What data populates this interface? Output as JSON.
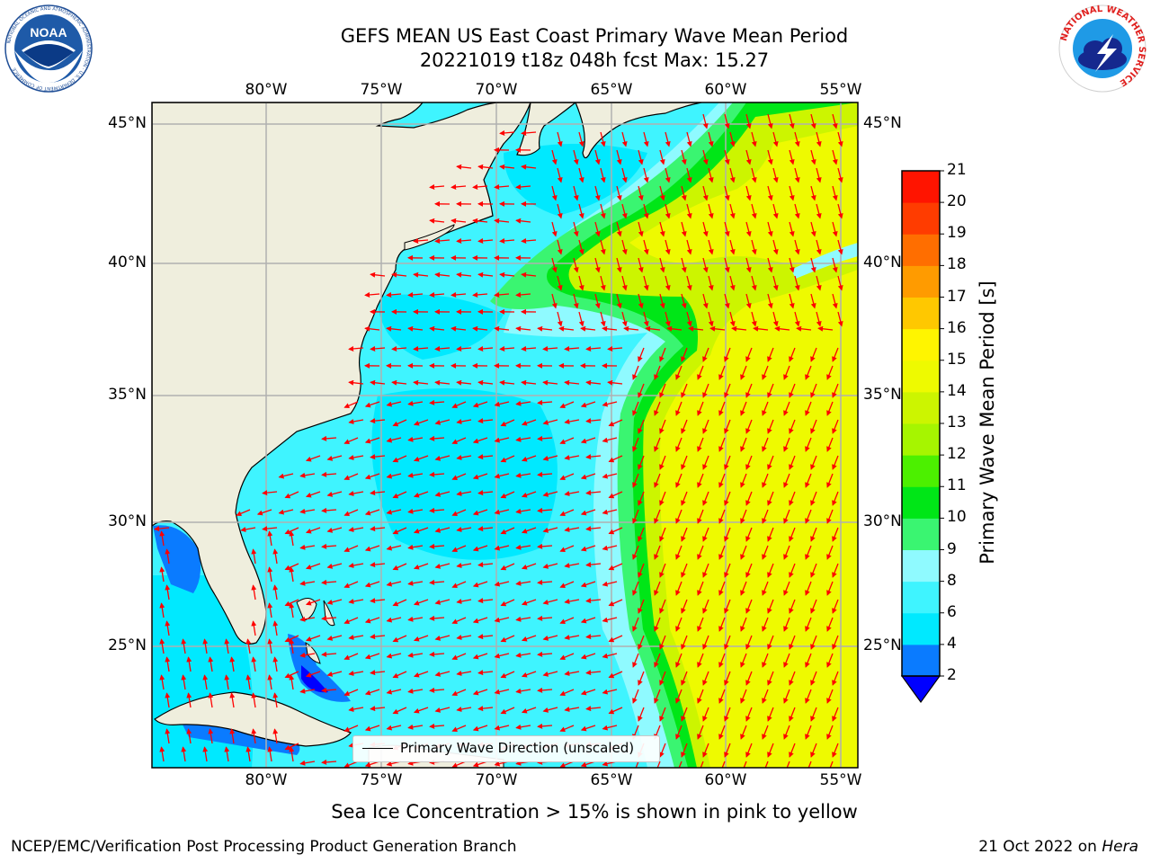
{
  "header": {
    "title_line1": "GEFS MEAN US East Coast Primary Wave Mean Period",
    "title_line2": "20221019 t18z 048h fcst   Max: 15.27"
  },
  "logos": {
    "noaa_text": "NOAA",
    "noaa_ring": "NATIONAL OCEANIC AND ATMOSPHERIC ADMINISTRATION · U.S. DEPARTMENT OF COMMERCE",
    "nws_ring": "NATIONAL WEATHER SERVICE"
  },
  "map": {
    "lon_labels": [
      "80°W",
      "75°W",
      "70°W",
      "65°W",
      "60°W",
      "55°W"
    ],
    "lat_labels": [
      "45°N",
      "40°N",
      "35°N",
      "30°N",
      "25°N"
    ],
    "lon_range": [
      -85,
      -54.3
    ],
    "lat_range": [
      20.5,
      45.8
    ],
    "gridlines": true,
    "legend_label": "Primary Wave Direction (unscaled)",
    "colors": {
      "land": "#efeedd",
      "vector": "#ff0000",
      "gridline": "#b0b0b0",
      "coast": "#000000"
    }
  },
  "colorbar": {
    "title": "Primary Wave Mean Period [s]",
    "tick_labels": [
      "21",
      "20",
      "19",
      "18",
      "17",
      "16",
      "15",
      "14",
      "13",
      "12",
      "11",
      "10",
      "9",
      "8",
      "6",
      "4",
      "2"
    ],
    "bands": [
      {
        "lo": 2,
        "hi": 4,
        "color": "#0a7bff"
      },
      {
        "lo": 4,
        "hi": 6,
        "color": "#00e9ff"
      },
      {
        "lo": 6,
        "hi": 8,
        "color": "#3ff4ff"
      },
      {
        "lo": 8,
        "hi": 9,
        "color": "#8ffaff"
      },
      {
        "lo": 9,
        "hi": 10,
        "color": "#3af571"
      },
      {
        "lo": 10,
        "hi": 11,
        "color": "#00e617"
      },
      {
        "lo": 11,
        "hi": 12,
        "color": "#4cf000"
      },
      {
        "lo": 12,
        "hi": 13,
        "color": "#a6f500"
      },
      {
        "lo": 13,
        "hi": 14,
        "color": "#ccf500"
      },
      {
        "lo": 14,
        "hi": 15,
        "color": "#eefa00"
      },
      {
        "lo": 15,
        "hi": 16,
        "color": "#fff500"
      },
      {
        "lo": 16,
        "hi": 17,
        "color": "#ffc800"
      },
      {
        "lo": 17,
        "hi": 18,
        "color": "#ff9b00"
      },
      {
        "lo": 18,
        "hi": 19,
        "color": "#ff6e00"
      },
      {
        "lo": 19,
        "hi": 20,
        "color": "#ff3c00"
      },
      {
        "lo": 20,
        "hi": 21,
        "color": "#ff1400"
      }
    ],
    "under_color": "#0000ff"
  },
  "annotation": {
    "sea_ice": "Sea Ice Concentration > 15% is shown in pink to yellow"
  },
  "footer": {
    "producer": "NCEP/EMC/Verification Post Processing Product Generation Branch",
    "date": "21 Oct 2022 on ",
    "host": "Hera"
  }
}
